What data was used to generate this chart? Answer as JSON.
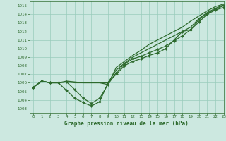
{
  "title": "Graphe pression niveau de la mer (hPa)",
  "bg_color": "#cce8e0",
  "line_color": "#2d6a2d",
  "grid_color": "#99ccbb",
  "xlim": [
    -0.5,
    23
  ],
  "ylim": [
    1002.5,
    1015.5
  ],
  "yticks": [
    1003,
    1004,
    1005,
    1006,
    1007,
    1008,
    1009,
    1010,
    1011,
    1012,
    1013,
    1014,
    1015
  ],
  "xticks": [
    0,
    1,
    2,
    3,
    4,
    5,
    6,
    7,
    8,
    9,
    10,
    11,
    12,
    13,
    14,
    15,
    16,
    17,
    18,
    19,
    20,
    21,
    22,
    23
  ],
  "series": [
    {
      "y": [
        1005.5,
        1006.2,
        1006.0,
        1006.0,
        1005.1,
        1004.2,
        1003.7,
        1003.3,
        1003.8,
        1006.0,
        1007.0,
        1008.0,
        1008.5,
        1008.8,
        1009.2,
        1009.5,
        1010.0,
        1011.0,
        1012.0,
        1012.2,
        1013.1,
        1014.0,
        1014.5,
        1014.8
      ],
      "marker": true,
      "lw": 0.9
    },
    {
      "y": [
        1005.5,
        1006.2,
        1006.0,
        1006.0,
        1006.1,
        1006.0,
        1006.0,
        1006.0,
        1006.0,
        1006.0,
        1007.5,
        1008.3,
        1009.0,
        1009.5,
        1010.0,
        1010.5,
        1011.0,
        1011.5,
        1012.0,
        1012.5,
        1013.5,
        1014.2,
        1014.7,
        1015.1
      ],
      "marker": false,
      "lw": 0.9
    },
    {
      "y": [
        1005.5,
        1006.2,
        1006.0,
        1006.0,
        1006.2,
        1006.1,
        1006.0,
        1006.0,
        1006.0,
        1005.8,
        1007.8,
        1008.5,
        1009.2,
        1009.8,
        1010.5,
        1011.0,
        1011.5,
        1012.0,
        1012.5,
        1013.2,
        1013.8,
        1014.4,
        1014.9,
        1015.2
      ],
      "marker": false,
      "lw": 0.9
    },
    {
      "y": [
        1005.5,
        1006.2,
        1006.0,
        1006.0,
        1006.1,
        1005.2,
        1004.2,
        1003.6,
        1004.2,
        1005.8,
        1007.2,
        1008.2,
        1008.8,
        1009.1,
        1009.5,
        1009.9,
        1010.3,
        1010.9,
        1011.5,
        1012.2,
        1013.4,
        1014.1,
        1014.6,
        1015.0
      ],
      "marker": true,
      "lw": 0.9
    }
  ]
}
